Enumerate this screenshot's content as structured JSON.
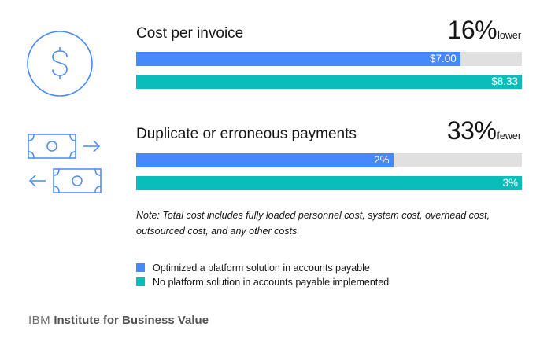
{
  "chart_data": {
    "type": "bar",
    "orientation": "horizontal",
    "series": [
      {
        "name": "Optimized a platform solution in accounts payable",
        "color": "#4589ff"
      },
      {
        "name": "No platform solution in accounts payable implemented",
        "color": "#08bdba"
      }
    ],
    "panels": [
      {
        "title": "Cost per invoice",
        "highlight_value": "16%",
        "highlight_suffix": "lower",
        "values": [
          7.0,
          8.33
        ],
        "labels": [
          "$7.00",
          "$8.33"
        ],
        "xlim": [
          0,
          8.33
        ],
        "icon": "dollar-icon"
      },
      {
        "title": "Duplicate or erroneous payments",
        "highlight_value": "33%",
        "highlight_suffix": "fewer",
        "values": [
          2,
          3
        ],
        "labels": [
          "2%",
          "3%"
        ],
        "xlim": [
          0,
          3
        ],
        "icon": "money-transfer-icon"
      }
    ],
    "note": "Note: Total cost includes fully loaded personnel cost, system cost, overhead cost, outsourced cost, and any other costs.",
    "legend_position": "bottom"
  },
  "footer": {
    "brand": "IBM",
    "text": "Institute for Business Value"
  },
  "colors": {
    "blue": "#4589ff",
    "teal": "#08bdba",
    "track": "#e0e0e0",
    "icon": "#4589ff"
  }
}
